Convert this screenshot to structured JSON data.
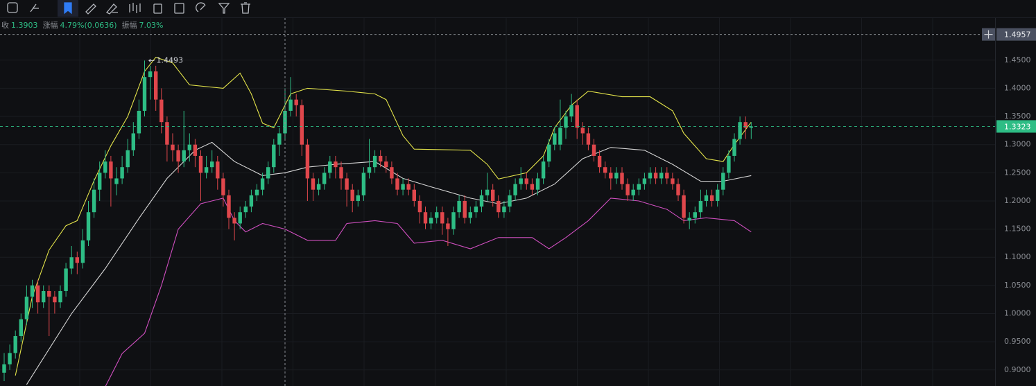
{
  "info": [
    {
      "label": "收",
      "value": "1.3903"
    },
    {
      "label": "涨幅",
      "value": "4.79%(0.0636)"
    },
    {
      "label": "振幅",
      "value": "7.03%"
    }
  ],
  "chart_data": {
    "type": "candlestick",
    "up_color": "#2ebd85",
    "down_color": "#e0474c",
    "ylim": [
      0.8714,
      1.5248
    ],
    "yticks": [
      {
        "value": 1.45,
        "label": "1.4500"
      },
      {
        "value": 1.4,
        "label": "1.4000"
      },
      {
        "value": 1.35,
        "label": "1.3500"
      },
      {
        "value": 1.3,
        "label": "1.3000"
      },
      {
        "value": 1.25,
        "label": "1.2500"
      },
      {
        "value": 1.2,
        "label": "1.2000"
      },
      {
        "value": 1.15,
        "label": "1.1500"
      },
      {
        "value": 1.1,
        "label": "1.1000"
      },
      {
        "value": 1.05,
        "label": "1.0500"
      },
      {
        "value": 1.0,
        "label": "1.0000"
      },
      {
        "value": 0.95,
        "label": "0.9500"
      },
      {
        "value": 0.9,
        "label": "0.9000"
      }
    ],
    "grid": true,
    "crosshair": {
      "index": 50,
      "price": 1.4957
    },
    "last_price": 1.3323,
    "max_index": 25,
    "ohlc": [
      [
        0.895,
        0.93,
        0.88,
        0.91
      ],
      [
        0.91,
        0.945,
        0.9,
        0.93
      ],
      [
        0.93,
        0.97,
        0.92,
        0.96
      ],
      [
        0.96,
        1.0,
        0.95,
        0.99
      ],
      [
        0.99,
        1.05,
        0.98,
        1.03
      ],
      [
        1.03,
        1.06,
        1.01,
        1.05
      ],
      [
        1.05,
        1.06,
        1.0,
        1.02
      ],
      [
        1.02,
        1.05,
        1.01,
        1.04
      ],
      [
        1.04,
        1.05,
        0.96,
        1.03
      ],
      [
        1.03,
        1.04,
        1.0,
        1.02
      ],
      [
        1.02,
        1.05,
        1.01,
        1.04
      ],
      [
        1.04,
        1.09,
        1.03,
        1.08
      ],
      [
        1.08,
        1.12,
        1.07,
        1.1
      ],
      [
        1.1,
        1.11,
        1.07,
        1.09
      ],
      [
        1.09,
        1.15,
        1.08,
        1.13
      ],
      [
        1.13,
        1.2,
        1.12,
        1.18
      ],
      [
        1.18,
        1.24,
        1.17,
        1.22
      ],
      [
        1.22,
        1.27,
        1.2,
        1.25
      ],
      [
        1.25,
        1.29,
        1.24,
        1.27
      ],
      [
        1.27,
        1.28,
        1.19,
        1.24
      ],
      [
        1.23,
        1.26,
        1.21,
        1.24
      ],
      [
        1.24,
        1.28,
        1.23,
        1.26
      ],
      [
        1.26,
        1.31,
        1.25,
        1.29
      ],
      [
        1.29,
        1.34,
        1.28,
        1.32
      ],
      [
        1.32,
        1.38,
        1.31,
        1.36
      ],
      [
        1.36,
        1.4493,
        1.35,
        1.42
      ],
      [
        1.42,
        1.44,
        1.38,
        1.43
      ],
      [
        1.43,
        1.44,
        1.36,
        1.38
      ],
      [
        1.38,
        1.4,
        1.32,
        1.34
      ],
      [
        1.34,
        1.35,
        1.27,
        1.3
      ],
      [
        1.3,
        1.32,
        1.27,
        1.29
      ],
      [
        1.29,
        1.3,
        1.25,
        1.27
      ],
      [
        1.27,
        1.36,
        1.26,
        1.29
      ],
      [
        1.29,
        1.32,
        1.27,
        1.3
      ],
      [
        1.3,
        1.31,
        1.26,
        1.28
      ],
      [
        1.28,
        1.29,
        1.2,
        1.25
      ],
      [
        1.25,
        1.28,
        1.24,
        1.26
      ],
      [
        1.26,
        1.29,
        1.25,
        1.27
      ],
      [
        1.27,
        1.28,
        1.22,
        1.24
      ],
      [
        1.24,
        1.25,
        1.19,
        1.21
      ],
      [
        1.21,
        1.22,
        1.15,
        1.17
      ],
      [
        1.17,
        1.18,
        1.13,
        1.16
      ],
      [
        1.16,
        1.19,
        1.15,
        1.18
      ],
      [
        1.18,
        1.2,
        1.17,
        1.19
      ],
      [
        1.19,
        1.22,
        1.18,
        1.21
      ],
      [
        1.21,
        1.23,
        1.2,
        1.22
      ],
      [
        1.22,
        1.25,
        1.21,
        1.24
      ],
      [
        1.24,
        1.27,
        1.23,
        1.26
      ],
      [
        1.26,
        1.31,
        1.25,
        1.3
      ],
      [
        1.3,
        1.33,
        1.28,
        1.32
      ],
      [
        1.32,
        1.4,
        1.31,
        1.36
      ],
      [
        1.36,
        1.42,
        1.35,
        1.38
      ],
      [
        1.38,
        1.39,
        1.35,
        1.37
      ],
      [
        1.37,
        1.38,
        1.28,
        1.3
      ],
      [
        1.3,
        1.31,
        1.2,
        1.24
      ],
      [
        1.24,
        1.25,
        1.2,
        1.22
      ],
      [
        1.22,
        1.24,
        1.21,
        1.23
      ],
      [
        1.23,
        1.26,
        1.22,
        1.25
      ],
      [
        1.25,
        1.28,
        1.24,
        1.27
      ],
      [
        1.27,
        1.28,
        1.24,
        1.26
      ],
      [
        1.26,
        1.27,
        1.22,
        1.24
      ],
      [
        1.24,
        1.25,
        1.19,
        1.22
      ],
      [
        1.22,
        1.23,
        1.18,
        1.2
      ],
      [
        1.2,
        1.22,
        1.19,
        1.21
      ],
      [
        1.21,
        1.26,
        1.2,
        1.25
      ],
      [
        1.25,
        1.31,
        1.24,
        1.26
      ],
      [
        1.26,
        1.29,
        1.25,
        1.28
      ],
      [
        1.28,
        1.29,
        1.26,
        1.27
      ],
      [
        1.27,
        1.28,
        1.25,
        1.26
      ],
      [
        1.26,
        1.27,
        1.23,
        1.24
      ],
      [
        1.24,
        1.25,
        1.21,
        1.22
      ],
      [
        1.22,
        1.24,
        1.21,
        1.23
      ],
      [
        1.23,
        1.24,
        1.21,
        1.22
      ],
      [
        1.22,
        1.23,
        1.19,
        1.2
      ],
      [
        1.2,
        1.21,
        1.16,
        1.18
      ],
      [
        1.18,
        1.19,
        1.15,
        1.16
      ],
      [
        1.16,
        1.18,
        1.15,
        1.17
      ],
      [
        1.17,
        1.19,
        1.16,
        1.18
      ],
      [
        1.18,
        1.19,
        1.14,
        1.16
      ],
      [
        1.16,
        1.17,
        1.12,
        1.15
      ],
      [
        1.15,
        1.19,
        1.14,
        1.18
      ],
      [
        1.18,
        1.21,
        1.17,
        1.2
      ],
      [
        1.2,
        1.21,
        1.16,
        1.17
      ],
      [
        1.17,
        1.19,
        1.16,
        1.18
      ],
      [
        1.18,
        1.2,
        1.17,
        1.19
      ],
      [
        1.19,
        1.22,
        1.18,
        1.21
      ],
      [
        1.21,
        1.25,
        1.2,
        1.22
      ],
      [
        1.22,
        1.23,
        1.19,
        1.2
      ],
      [
        1.2,
        1.21,
        1.17,
        1.18
      ],
      [
        1.18,
        1.2,
        1.17,
        1.19
      ],
      [
        1.19,
        1.22,
        1.18,
        1.21
      ],
      [
        1.21,
        1.24,
        1.2,
        1.23
      ],
      [
        1.23,
        1.26,
        1.22,
        1.24
      ],
      [
        1.24,
        1.25,
        1.22,
        1.23
      ],
      [
        1.23,
        1.24,
        1.21,
        1.22
      ],
      [
        1.22,
        1.25,
        1.21,
        1.24
      ],
      [
        1.24,
        1.28,
        1.23,
        1.27
      ],
      [
        1.27,
        1.31,
        1.26,
        1.3
      ],
      [
        1.3,
        1.33,
        1.29,
        1.32
      ],
      [
        1.3,
        1.38,
        1.29,
        1.33
      ],
      [
        1.33,
        1.36,
        1.31,
        1.35
      ],
      [
        1.35,
        1.39,
        1.34,
        1.37
      ],
      [
        1.37,
        1.38,
        1.31,
        1.33
      ],
      [
        1.33,
        1.34,
        1.3,
        1.32
      ],
      [
        1.32,
        1.33,
        1.29,
        1.3
      ],
      [
        1.3,
        1.31,
        1.27,
        1.28
      ],
      [
        1.28,
        1.29,
        1.25,
        1.26
      ],
      [
        1.26,
        1.27,
        1.24,
        1.25
      ],
      [
        1.25,
        1.26,
        1.22,
        1.24
      ],
      [
        1.24,
        1.26,
        1.23,
        1.25
      ],
      [
        1.25,
        1.26,
        1.22,
        1.23
      ],
      [
        1.23,
        1.24,
        1.2,
        1.21
      ],
      [
        1.21,
        1.23,
        1.2,
        1.22
      ],
      [
        1.22,
        1.24,
        1.21,
        1.23
      ],
      [
        1.23,
        1.25,
        1.22,
        1.24
      ],
      [
        1.24,
        1.26,
        1.23,
        1.25
      ],
      [
        1.25,
        1.26,
        1.23,
        1.24
      ],
      [
        1.24,
        1.26,
        1.23,
        1.25
      ],
      [
        1.25,
        1.26,
        1.23,
        1.24
      ],
      [
        1.24,
        1.25,
        1.22,
        1.23
      ],
      [
        1.23,
        1.24,
        1.2,
        1.21
      ],
      [
        1.21,
        1.22,
        1.16,
        1.17
      ],
      [
        1.165,
        1.18,
        1.15,
        1.17
      ],
      [
        1.17,
        1.19,
        1.16,
        1.18
      ],
      [
        1.18,
        1.22,
        1.17,
        1.2
      ],
      [
        1.2,
        1.22,
        1.19,
        1.21
      ],
      [
        1.21,
        1.22,
        1.19,
        1.2
      ],
      [
        1.2,
        1.23,
        1.19,
        1.22
      ],
      [
        1.22,
        1.26,
        1.21,
        1.25
      ],
      [
        1.25,
        1.29,
        1.24,
        1.28
      ],
      [
        1.28,
        1.32,
        1.27,
        1.31
      ],
      [
        1.31,
        1.35,
        1.3,
        1.34
      ],
      [
        1.34,
        1.35,
        1.31,
        1.33
      ],
      [
        1.33,
        1.34,
        1.31,
        1.3323
      ]
    ],
    "series": [
      {
        "color": "#e3e34a",
        "x": [
          2,
          5,
          8,
          11,
          13,
          16,
          19,
          22,
          25,
          27,
          30,
          33,
          39,
          42,
          44,
          46,
          48,
          51,
          54,
          61,
          66,
          68,
          71,
          73,
          83,
          86,
          88,
          93,
          96,
          98,
          101,
          104,
          110,
          115,
          119,
          121,
          125,
          128,
          130,
          133
        ],
        "values": [
          0.89,
          1.03,
          1.113,
          1.156,
          1.165,
          1.236,
          1.298,
          1.35,
          1.43,
          1.455,
          1.445,
          1.406,
          1.4,
          1.427,
          1.39,
          1.338,
          1.33,
          1.39,
          1.4,
          1.395,
          1.39,
          1.38,
          1.316,
          1.292,
          1.29,
          1.265,
          1.239,
          1.25,
          1.28,
          1.33,
          1.37,
          1.395,
          1.385,
          1.385,
          1.36,
          1.32,
          1.275,
          1.27,
          1.3,
          1.34
        ]
      },
      {
        "color": "#d6d6d6",
        "x": [
          4,
          12,
          18,
          24,
          29,
          34,
          37,
          41,
          46,
          50,
          54,
          59,
          66,
          71,
          76,
          83,
          88,
          93,
          98,
          103,
          108,
          114,
          119,
          124,
          128,
          133
        ],
        "values": [
          0.874,
          1.0,
          1.08,
          1.169,
          1.24,
          1.29,
          1.304,
          1.27,
          1.245,
          1.25,
          1.26,
          1.265,
          1.27,
          1.24,
          1.225,
          1.205,
          1.195,
          1.205,
          1.23,
          1.275,
          1.295,
          1.29,
          1.265,
          1.235,
          1.235,
          1.245
        ]
      },
      {
        "color": "#d04fc0",
        "x": [
          18,
          21,
          25,
          28,
          31,
          35,
          39,
          41,
          43,
          46,
          50,
          54,
          59,
          61,
          66,
          70,
          73,
          78,
          83,
          88,
          94,
          97,
          100,
          104,
          108,
          113,
          118,
          121,
          125,
          130,
          133
        ],
        "values": [
          0.87,
          0.929,
          0.965,
          1.05,
          1.15,
          1.195,
          1.205,
          1.165,
          1.145,
          1.16,
          1.15,
          1.13,
          1.13,
          1.16,
          1.165,
          1.16,
          1.125,
          1.13,
          1.115,
          1.135,
          1.135,
          1.115,
          1.135,
          1.165,
          1.205,
          1.2,
          1.185,
          1.165,
          1.17,
          1.165,
          1.145
        ]
      }
    ]
  }
}
